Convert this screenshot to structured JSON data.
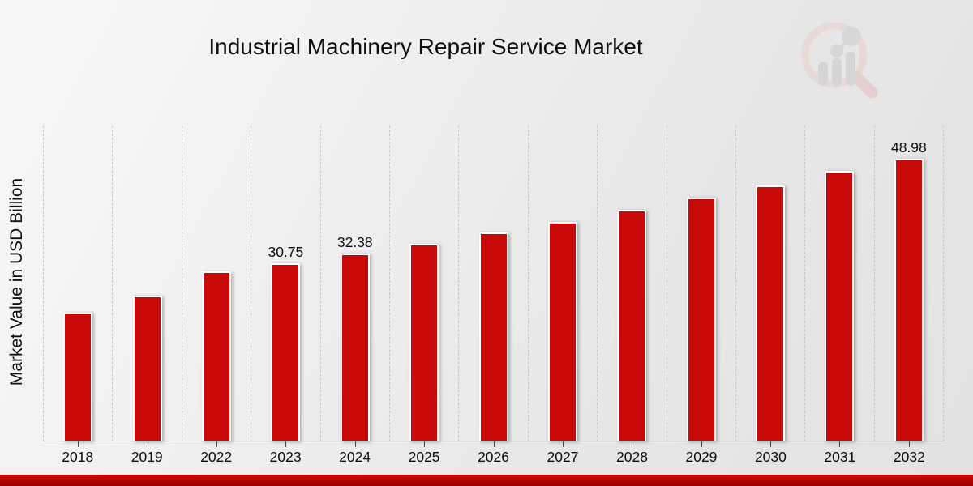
{
  "chart_data": {
    "type": "bar",
    "title": "Industrial Machinery Repair Service Market",
    "ylabel": "Market Value in USD Billion",
    "xlabel": "",
    "categories": [
      "2018",
      "2019",
      "2022",
      "2023",
      "2024",
      "2025",
      "2026",
      "2027",
      "2028",
      "2029",
      "2030",
      "2031",
      "2032"
    ],
    "values": [
      22.2,
      25.1,
      29.4,
      30.75,
      32.38,
      34.1,
      36.1,
      38.0,
      40.0,
      42.2,
      44.3,
      46.8,
      48.98
    ],
    "point_labels": {
      "2023": "30.75",
      "2024": "32.38",
      "2032": "48.98"
    },
    "ylim": [
      0,
      55
    ],
    "bar_color": "#c90808",
    "gridlines": "vertical-dashed",
    "legend": "none"
  },
  "watermark": {
    "icon": "market-research-future-magnifier-logo"
  },
  "footer": {
    "accent_color": "#b10400"
  }
}
